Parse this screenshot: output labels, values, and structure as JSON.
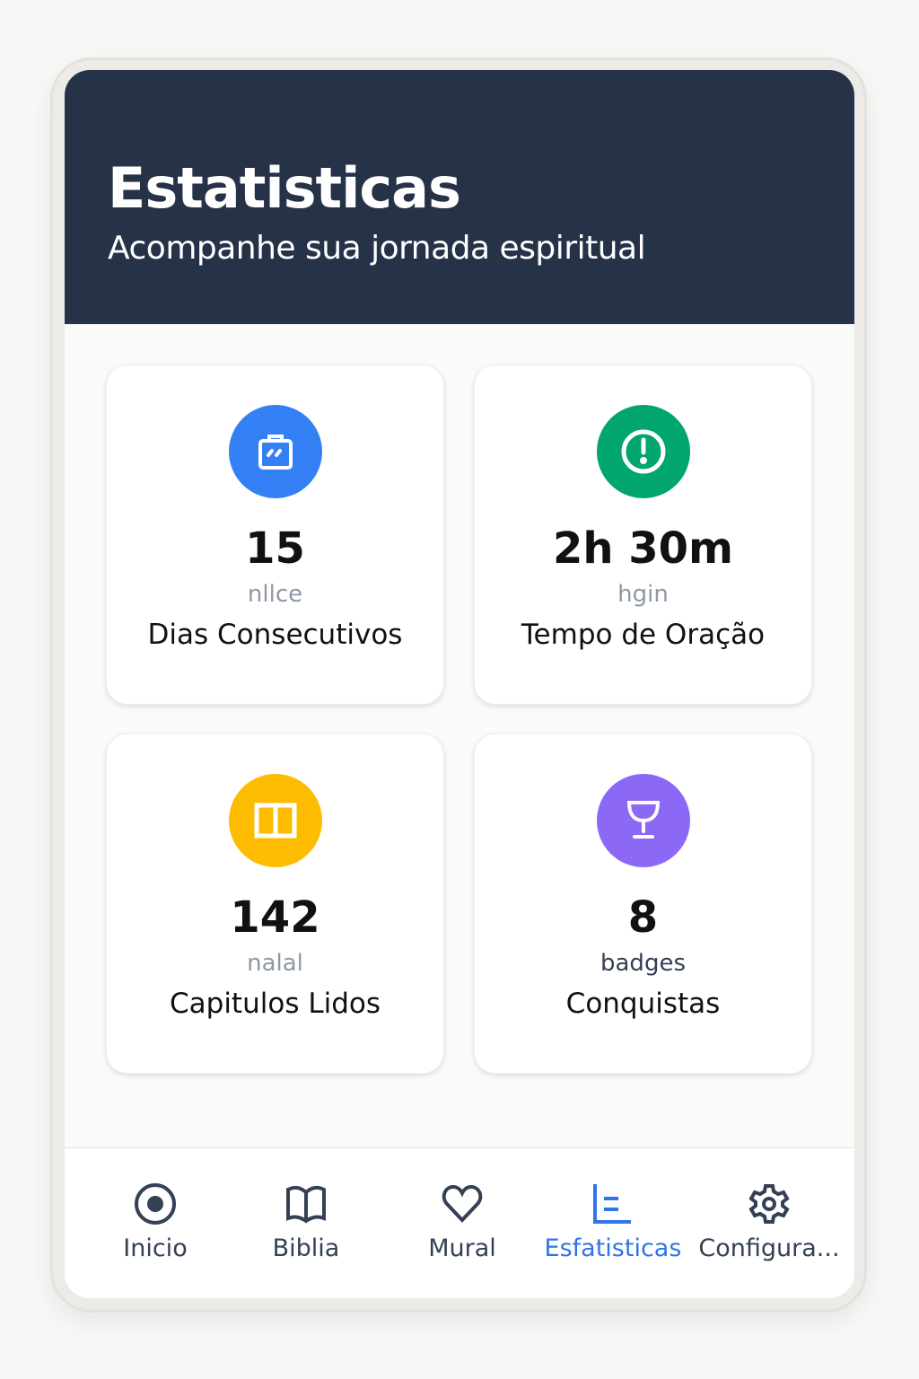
{
  "header": {
    "title": "Estatisticas",
    "subtitle": "Acompanhe sua jornada espiritual"
  },
  "stats": [
    {
      "value": "15",
      "unit": "nllce",
      "label": "Dias Consecutivos",
      "icon": "calendar-icon",
      "color": "#3380f4"
    },
    {
      "value": "2h 30m",
      "unit": "hgin",
      "label": "Tempo de Oração",
      "icon": "alert-circle-icon",
      "color": "#00a56f"
    },
    {
      "value": "142",
      "unit": "nalal",
      "label": "Capitulos Lidos",
      "icon": "book-icon",
      "color": "#fdbc00"
    },
    {
      "value": "8",
      "unit": "badges",
      "label": "Conquistas",
      "icon": "trophy-icon",
      "color": "#8b68f6"
    }
  ],
  "nav": {
    "items": [
      {
        "label": "Inicio",
        "icon": "home-icon"
      },
      {
        "label": "Biblia",
        "icon": "book-icon"
      },
      {
        "label": "Mural",
        "icon": "heart-icon"
      },
      {
        "label": "Esfatisticas",
        "icon": "chart-icon",
        "active": true
      },
      {
        "label": "Configura...",
        "icon": "gear-icon"
      }
    ],
    "active_color": "#2f74ea"
  }
}
